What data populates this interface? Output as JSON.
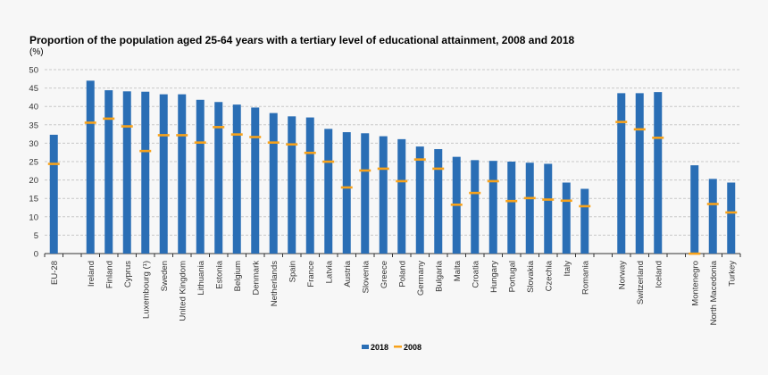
{
  "chart_data": {
    "type": "bar",
    "title": "Proportion of the population aged 25-64 years with a tertiary level of educational attainment, 2008 and 2018",
    "ylabel": "(%)",
    "ylim": [
      0,
      50
    ],
    "yticks": [
      0,
      5,
      10,
      15,
      20,
      25,
      30,
      35,
      40,
      45,
      50
    ],
    "grid": true,
    "legend": "bottom",
    "colors": {
      "2018": "#2a6eb5",
      "2008": "#f7a21b"
    },
    "groups": [
      [
        "EU-28"
      ],
      [
        "Ireland",
        "Finland",
        "Cyprus",
        "Luxembourg (¹)",
        "Sweden",
        "United Kingdom",
        "Lithuania",
        "Estonia",
        "Belgium",
        "Denmark",
        "Netherlands",
        "Spain",
        "France",
        "Latvia",
        "Austria",
        "Slovenia",
        "Greece",
        "Poland",
        "Germany",
        "Bulgaria",
        "Malta",
        "Croatia",
        "Hungary",
        "Portugal",
        "Slovakia",
        "Czechia",
        "Italy",
        "Romania"
      ],
      [
        "Norway",
        "Switzerland",
        "Iceland"
      ],
      [
        "Montenegro",
        "North Macedonia",
        "Turkey"
      ]
    ],
    "series": [
      {
        "name": "2018",
        "style": "bar",
        "values": [
          32.3,
          47.0,
          44.4,
          44.1,
          44.0,
          43.3,
          43.3,
          41.8,
          41.2,
          40.5,
          39.7,
          38.2,
          37.3,
          37.0,
          33.9,
          33.0,
          32.7,
          31.9,
          31.1,
          29.1,
          28.4,
          26.3,
          25.4,
          25.2,
          25.0,
          24.7,
          24.4,
          19.3,
          17.6,
          43.6,
          43.6,
          43.9,
          24.0,
          20.3,
          19.3
        ]
      },
      {
        "name": "2008",
        "style": "marker",
        "values": [
          24.4,
          35.6,
          36.7,
          34.6,
          27.9,
          32.2,
          32.2,
          30.2,
          34.4,
          32.4,
          31.7,
          30.2,
          29.7,
          27.4,
          25.0,
          18.0,
          22.6,
          23.1,
          19.7,
          25.6,
          23.1,
          13.3,
          16.5,
          19.7,
          14.3,
          15.1,
          14.7,
          14.4,
          12.9,
          35.8,
          33.8,
          31.5,
          0,
          13.5,
          11.2
        ]
      }
    ]
  }
}
